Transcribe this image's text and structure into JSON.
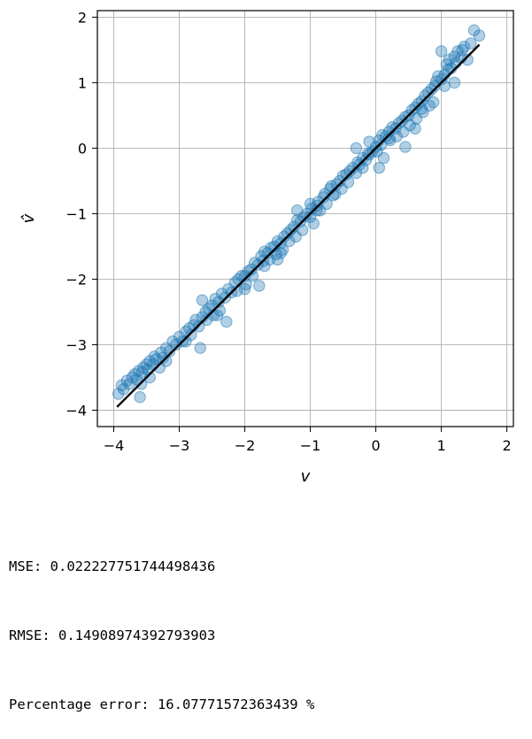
{
  "chart_data": {
    "type": "scatter",
    "xlabel": "v",
    "ylabel": "v̂",
    "xlim": [
      -4.25,
      2.1
    ],
    "ylim": [
      -4.25,
      2.1
    ],
    "xticks": [
      -4,
      -3,
      -2,
      -1,
      0,
      1,
      2
    ],
    "yticks": [
      -4,
      -3,
      -2,
      -1,
      0,
      1,
      2
    ],
    "grid": true,
    "point_color": "#1f77b4",
    "point_alpha": 0.35,
    "line_color": "#000000",
    "reference_line": {
      "x": [
        -3.95,
        1.58
      ],
      "y": [
        -3.95,
        1.58
      ]
    },
    "points": [
      [
        -3.93,
        -3.75
      ],
      [
        -3.88,
        -3.62
      ],
      [
        -3.85,
        -3.68
      ],
      [
        -3.8,
        -3.55
      ],
      [
        -3.76,
        -3.6
      ],
      [
        -3.72,
        -3.5
      ],
      [
        -3.68,
        -3.45
      ],
      [
        -3.65,
        -3.53
      ],
      [
        -3.62,
        -3.4
      ],
      [
        -3.6,
        -3.8
      ],
      [
        -3.57,
        -3.42
      ],
      [
        -3.55,
        -3.35
      ],
      [
        -3.5,
        -3.3
      ],
      [
        -3.48,
        -3.38
      ],
      [
        -3.45,
        -3.25
      ],
      [
        -3.4,
        -3.3
      ],
      [
        -3.38,
        -3.18
      ],
      [
        -3.35,
        -3.22
      ],
      [
        -3.3,
        -3.35
      ],
      [
        -3.28,
        -3.12
      ],
      [
        -3.25,
        -3.2
      ],
      [
        -3.2,
        -3.05
      ],
      [
        -3.15,
        -3.1
      ],
      [
        -3.1,
        -2.95
      ],
      [
        -3.05,
        -3.0
      ],
      [
        -3.0,
        -2.88
      ],
      [
        -2.95,
        -2.95
      ],
      [
        -2.9,
        -2.8
      ],
      [
        -2.85,
        -2.75
      ],
      [
        -2.82,
        -2.85
      ],
      [
        -2.78,
        -2.7
      ],
      [
        -2.75,
        -2.62
      ],
      [
        -2.7,
        -2.72
      ],
      [
        -2.68,
        -3.05
      ],
      [
        -2.65,
        -2.58
      ],
      [
        -2.6,
        -2.5
      ],
      [
        -2.58,
        -2.62
      ],
      [
        -2.55,
        -2.45
      ],
      [
        -2.5,
        -2.4
      ],
      [
        -2.48,
        -2.55
      ],
      [
        -2.45,
        -2.3
      ],
      [
        -2.4,
        -2.35
      ],
      [
        -2.38,
        -2.48
      ],
      [
        -2.35,
        -2.22
      ],
      [
        -2.3,
        -2.28
      ],
      [
        -2.28,
        -2.65
      ],
      [
        -2.25,
        -2.15
      ],
      [
        -2.2,
        -2.2
      ],
      [
        -2.15,
        -2.05
      ],
      [
        -2.12,
        -2.18
      ],
      [
        -2.1,
        -2.0
      ],
      [
        -2.05,
        -1.95
      ],
      [
        -2.0,
        -1.95
      ],
      [
        -1.98,
        -2.08
      ],
      [
        -1.95,
        -1.88
      ],
      [
        -1.9,
        -1.85
      ],
      [
        -1.88,
        -1.95
      ],
      [
        -1.85,
        -1.75
      ],
      [
        -1.8,
        -1.78
      ],
      [
        -1.78,
        -2.1
      ],
      [
        -1.75,
        -1.65
      ],
      [
        -1.72,
        -1.72
      ],
      [
        -1.7,
        -1.58
      ],
      [
        -1.65,
        -1.6
      ],
      [
        -1.62,
        -1.7
      ],
      [
        -1.6,
        -1.52
      ],
      [
        -1.55,
        -1.5
      ],
      [
        -1.52,
        -1.62
      ],
      [
        -1.5,
        -1.42
      ],
      [
        -1.45,
        -1.45
      ],
      [
        -1.42,
        -1.55
      ],
      [
        -1.4,
        -1.35
      ],
      [
        -1.35,
        -1.3
      ],
      [
        -1.32,
        -1.42
      ],
      [
        -1.3,
        -1.25
      ],
      [
        -1.25,
        -1.2
      ],
      [
        -1.22,
        -1.35
      ],
      [
        -1.2,
        -1.1
      ],
      [
        -1.15,
        -1.12
      ],
      [
        -1.12,
        -1.25
      ],
      [
        -1.1,
        -1.05
      ],
      [
        -1.05,
        -1.0
      ],
      [
        -1.0,
        -1.05
      ],
      [
        -0.98,
        -0.92
      ],
      [
        -0.95,
        -1.15
      ],
      [
        -0.9,
        -0.88
      ],
      [
        -0.88,
        -0.82
      ],
      [
        -0.85,
        -0.95
      ],
      [
        -0.8,
        -0.75
      ],
      [
        -0.78,
        -0.7
      ],
      [
        -0.75,
        -0.85
      ],
      [
        -0.7,
        -0.62
      ],
      [
        -0.68,
        -0.58
      ],
      [
        -0.65,
        -0.72
      ],
      [
        -0.6,
        -0.55
      ],
      [
        -0.55,
        -0.5
      ],
      [
        -0.52,
        -0.62
      ],
      [
        -0.5,
        -0.42
      ],
      [
        -0.45,
        -0.4
      ],
      [
        -0.42,
        -0.52
      ],
      [
        -0.4,
        -0.35
      ],
      [
        -0.35,
        -0.3
      ],
      [
        -0.3,
        -0.38
      ],
      [
        -0.28,
        -0.22
      ],
      [
        -0.25,
        -0.25
      ],
      [
        -0.2,
        -0.15
      ],
      [
        -0.15,
        -0.18
      ],
      [
        -0.12,
        -0.08
      ],
      [
        -0.1,
        -0.1
      ],
      [
        -0.05,
        -0.05
      ],
      [
        0.0,
        0.02
      ],
      [
        0.02,
        -0.05
      ],
      [
        0.05,
        0.12
      ],
      [
        0.08,
        0.05
      ],
      [
        0.1,
        0.2
      ],
      [
        0.12,
        -0.15
      ],
      [
        0.15,
        0.18
      ],
      [
        0.2,
        0.25
      ],
      [
        0.22,
        0.12
      ],
      [
        0.25,
        0.32
      ],
      [
        0.3,
        0.3
      ],
      [
        0.32,
        0.18
      ],
      [
        0.35,
        0.38
      ],
      [
        0.4,
        0.42
      ],
      [
        0.42,
        0.25
      ],
      [
        0.45,
        0.48
      ],
      [
        0.5,
        0.5
      ],
      [
        0.52,
        0.35
      ],
      [
        0.55,
        0.58
      ],
      [
        0.6,
        0.62
      ],
      [
        0.62,
        0.45
      ],
      [
        0.65,
        0.68
      ],
      [
        0.7,
        0.72
      ],
      [
        0.72,
        0.55
      ],
      [
        0.75,
        0.8
      ],
      [
        0.8,
        0.85
      ],
      [
        0.82,
        0.65
      ],
      [
        0.85,
        0.9
      ],
      [
        0.9,
        0.95
      ],
      [
        0.92,
        1.02
      ],
      [
        0.95,
        1.1
      ],
      [
        1.0,
        1.05
      ],
      [
        1.0,
        1.48
      ],
      [
        1.05,
        1.12
      ],
      [
        1.08,
        1.28
      ],
      [
        1.1,
        1.2
      ],
      [
        1.12,
        1.35
      ],
      [
        1.15,
        1.22
      ],
      [
        1.2,
        1.4
      ],
      [
        1.22,
        1.3
      ],
      [
        1.25,
        1.48
      ],
      [
        1.3,
        1.38
      ],
      [
        1.32,
        1.5
      ],
      [
        1.35,
        1.55
      ],
      [
        1.4,
        1.35
      ],
      [
        1.45,
        1.6
      ],
      [
        1.5,
        1.8
      ],
      [
        1.58,
        1.72
      ],
      [
        -0.3,
        0.0
      ],
      [
        -0.1,
        0.1
      ],
      [
        0.05,
        -0.3
      ],
      [
        0.45,
        0.02
      ],
      [
        0.6,
        0.3
      ],
      [
        0.88,
        0.7
      ],
      [
        1.2,
        1.0
      ],
      [
        -1.2,
        -0.95
      ],
      [
        -1.5,
        -1.7
      ],
      [
        -2.65,
        -2.32
      ],
      [
        -3.58,
        -3.6
      ],
      [
        -0.9,
        -0.95
      ],
      [
        -2.0,
        -2.15
      ],
      [
        -1.0,
        -0.85
      ],
      [
        -1.45,
        -1.6
      ],
      [
        -2.42,
        -2.55
      ],
      [
        -3.2,
        -3.25
      ],
      [
        -0.62,
        -0.7
      ],
      [
        0.2,
        0.15
      ],
      [
        0.7,
        0.6
      ],
      [
        1.05,
        0.95
      ],
      [
        -0.2,
        -0.3
      ],
      [
        -1.7,
        -1.8
      ],
      [
        -2.9,
        -2.95
      ],
      [
        -3.45,
        -3.5
      ]
    ]
  },
  "metrics": {
    "mse": "MSE: 0.022227751744498436",
    "rmse": "RMSE: 0.14908974392793903",
    "percentage_error": "Percentage error: 16.07771572363439 %"
  }
}
